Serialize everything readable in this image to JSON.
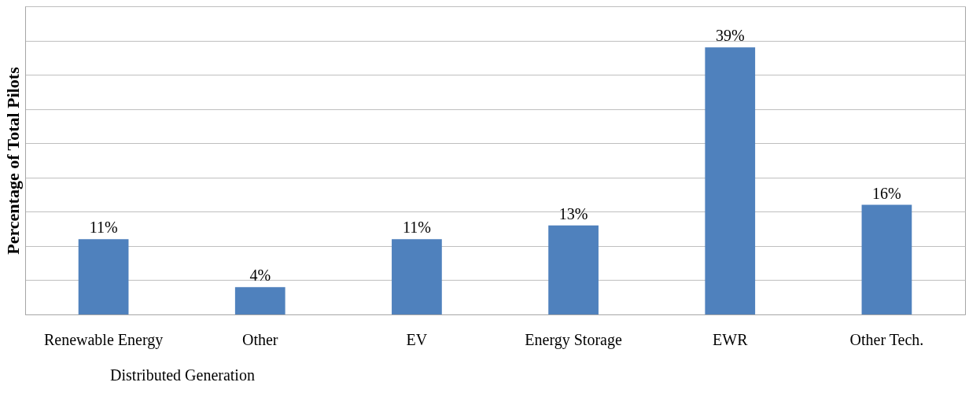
{
  "chart_data": {
    "type": "bar",
    "ylabel": "Percentage of Total Pilots",
    "categories": [
      "Renewable Energy",
      "Other",
      "EV",
      "Energy Storage",
      "EWR",
      "Other Tech."
    ],
    "values": [
      11,
      4,
      11,
      13,
      39,
      16
    ],
    "color": "#4f81bd",
    "value_labels": [
      "11%",
      "4%",
      "11%",
      "13%",
      "39%",
      "16%"
    ],
    "annotations": [
      "Distributed Generation"
    ],
    "ylim": [
      0,
      45
    ],
    "yticks": [
      {
        "value": 0,
        "label": null
      },
      {
        "value": 5,
        "label": null
      },
      {
        "value": 10,
        "label": null
      },
      {
        "value": 15,
        "label": null
      },
      {
        "value": 20,
        "label": null
      },
      {
        "value": 25,
        "label": null
      },
      {
        "value": 30,
        "label": null
      },
      {
        "value": 35,
        "label": null
      },
      {
        "value": 40,
        "label": null
      },
      {
        "value": 45,
        "label": null
      }
    ],
    "grid": "y",
    "tick_labels": "x"
  }
}
